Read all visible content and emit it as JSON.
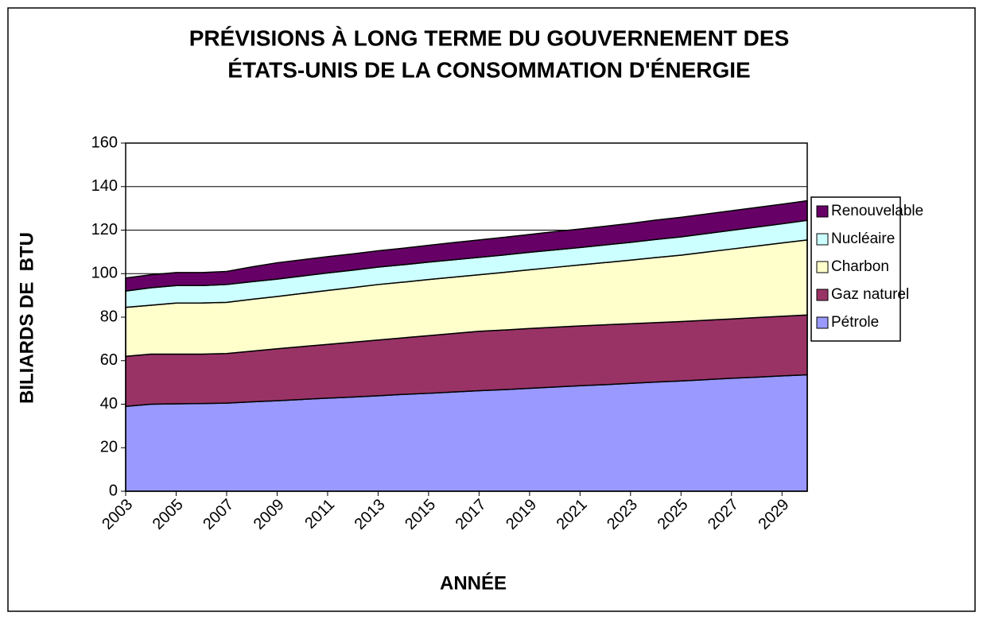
{
  "chart_data": {
    "type": "stacked_area",
    "title": [
      "PRÉVISIONS À LONG TERME DU GOUVERNEMENT DES",
      "ÉTATS-UNIS DE LA CONSOMMATION D'ÉNERGIE"
    ],
    "x_label": "ANNÉE",
    "y_label": "BILIARDS DE  BTU",
    "categories": [
      "2003",
      null,
      "2005",
      null,
      "2007",
      null,
      "2009",
      null,
      "2011",
      null,
      "2013",
      null,
      "2015",
      null,
      "2017",
      null,
      "2019",
      null,
      "2021",
      null,
      "2023",
      null,
      "2025",
      null,
      "2027",
      null,
      "2029",
      null
    ],
    "series": [
      {
        "name": "Pétrole",
        "color": "#9999ff",
        "values": [
          39,
          40,
          40.2,
          40.3,
          40.5,
          41.1,
          41.6,
          42.2,
          42.8,
          43.3,
          43.9,
          44.5,
          45.0,
          45.6,
          46.2,
          46.7,
          47.3,
          47.9,
          48.5,
          49.0,
          49.6,
          50.2,
          50.7,
          51.3,
          51.9,
          52.4,
          53.0,
          53.5
        ]
      },
      {
        "name": "Gaz naturel",
        "color": "#993366",
        "values": [
          23,
          23,
          22.8,
          22.7,
          22.8,
          23.3,
          23.9,
          24.3,
          24.7,
          25.2,
          25.6,
          26,
          26.5,
          26.9,
          27.3,
          27.4,
          27.5,
          27.5,
          27.5,
          27.5,
          27.4,
          27.3,
          27.3,
          27.3,
          27.3,
          27.4,
          27.4,
          27.5
        ]
      },
      {
        "name": "Charbon",
        "color": "#ffffcc",
        "values": [
          22.5,
          22.5,
          23.5,
          23.5,
          23.5,
          23.8,
          24,
          24.4,
          24.8,
          25.1,
          25.5,
          25.6,
          25.8,
          25.9,
          26,
          26.5,
          27,
          27.5,
          28,
          28.6,
          29.2,
          29.9,
          30.5,
          31.3,
          32.1,
          32.9,
          33.7,
          34.5
        ]
      },
      {
        "name": "Nucléaire",
        "color": "#ccffff",
        "values": [
          7.5,
          8,
          8,
          8,
          8.2,
          8.1,
          8,
          8,
          8,
          8,
          8,
          8,
          8,
          8,
          8,
          8,
          8,
          8,
          8,
          8.1,
          8.2,
          8.3,
          8.4,
          8.5,
          8.6,
          8.7,
          8.8,
          9
        ]
      },
      {
        "name": "Renouvelable",
        "color": "#660066",
        "values": [
          6,
          6,
          6,
          6,
          6,
          6.8,
          7.5,
          7.5,
          7.5,
          7.5,
          7.5,
          7.6,
          7.7,
          7.9,
          8,
          8.1,
          8.2,
          8.4,
          8.5,
          8.6,
          8.7,
          8.9,
          9,
          9,
          9,
          9,
          9,
          9
        ]
      }
    ],
    "ylim": [
      0,
      160
    ],
    "yticks": [
      0,
      20,
      40,
      60,
      80,
      100,
      120,
      140,
      160
    ],
    "grid": true,
    "legend": "right"
  }
}
